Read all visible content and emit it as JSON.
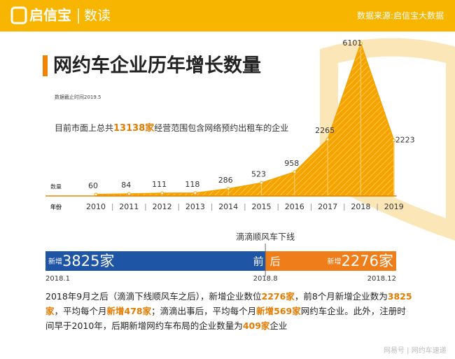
{
  "header": {
    "logo": "启信宝",
    "section": "数读",
    "source": "数据来源:启信宝大数据"
  },
  "title": "网约车企业历年增长数量",
  "date_note": "数据截止时间2019.5",
  "summary": [
    {
      "text": "目前市面上总共"
    },
    {
      "text": "13138家",
      "strong": true
    },
    {
      "text": "经营范围包含网络预约出租车的企业"
    }
  ],
  "chart_data": {
    "type": "area",
    "y_label": "数量",
    "x_label": "年份",
    "categories": [
      "2010",
      "2011",
      "2012",
      "2013",
      "2014",
      "2015",
      "2016",
      "2017",
      "2018",
      "2019"
    ],
    "values": [
      60,
      84,
      111,
      118,
      286,
      523,
      958,
      2265,
      6101,
      2223
    ],
    "color": "#f5a300"
  },
  "timeline": {
    "event": "滴滴顺风车下线",
    "segments": [
      {
        "prefix": "新增",
        "value": 3825,
        "unit": "家",
        "side": "前",
        "color": "#1f55a5"
      },
      {
        "prefix": "新增",
        "value": 2276,
        "unit": "家",
        "side": "后",
        "color": "#ee7d1a"
      }
    ],
    "dates": [
      "2018.1",
      "2018.8",
      "2018.12"
    ]
  },
  "paragraph": [
    {
      "text": "2018年9月之后（滴滴下线顺风车之后），新增企业数位"
    },
    {
      "text": "2276家",
      "strong": true
    },
    {
      "text": "，前8个月新增企业数为"
    },
    {
      "text": "3825家",
      "strong": true
    },
    {
      "text": "，平均每个月"
    },
    {
      "text": "新增478家",
      "strong": true
    },
    {
      "text": "；滴滴出事后，平均每个月"
    },
    {
      "text": "新增569家",
      "strong": true
    },
    {
      "text": "网约车企业。此外，注册时间早于2010年，后期新增网约车布局的企业数量为"
    },
    {
      "text": "409家",
      "strong": true
    },
    {
      "text": "企业"
    }
  ],
  "footer": "网易号 | 网约车速递"
}
